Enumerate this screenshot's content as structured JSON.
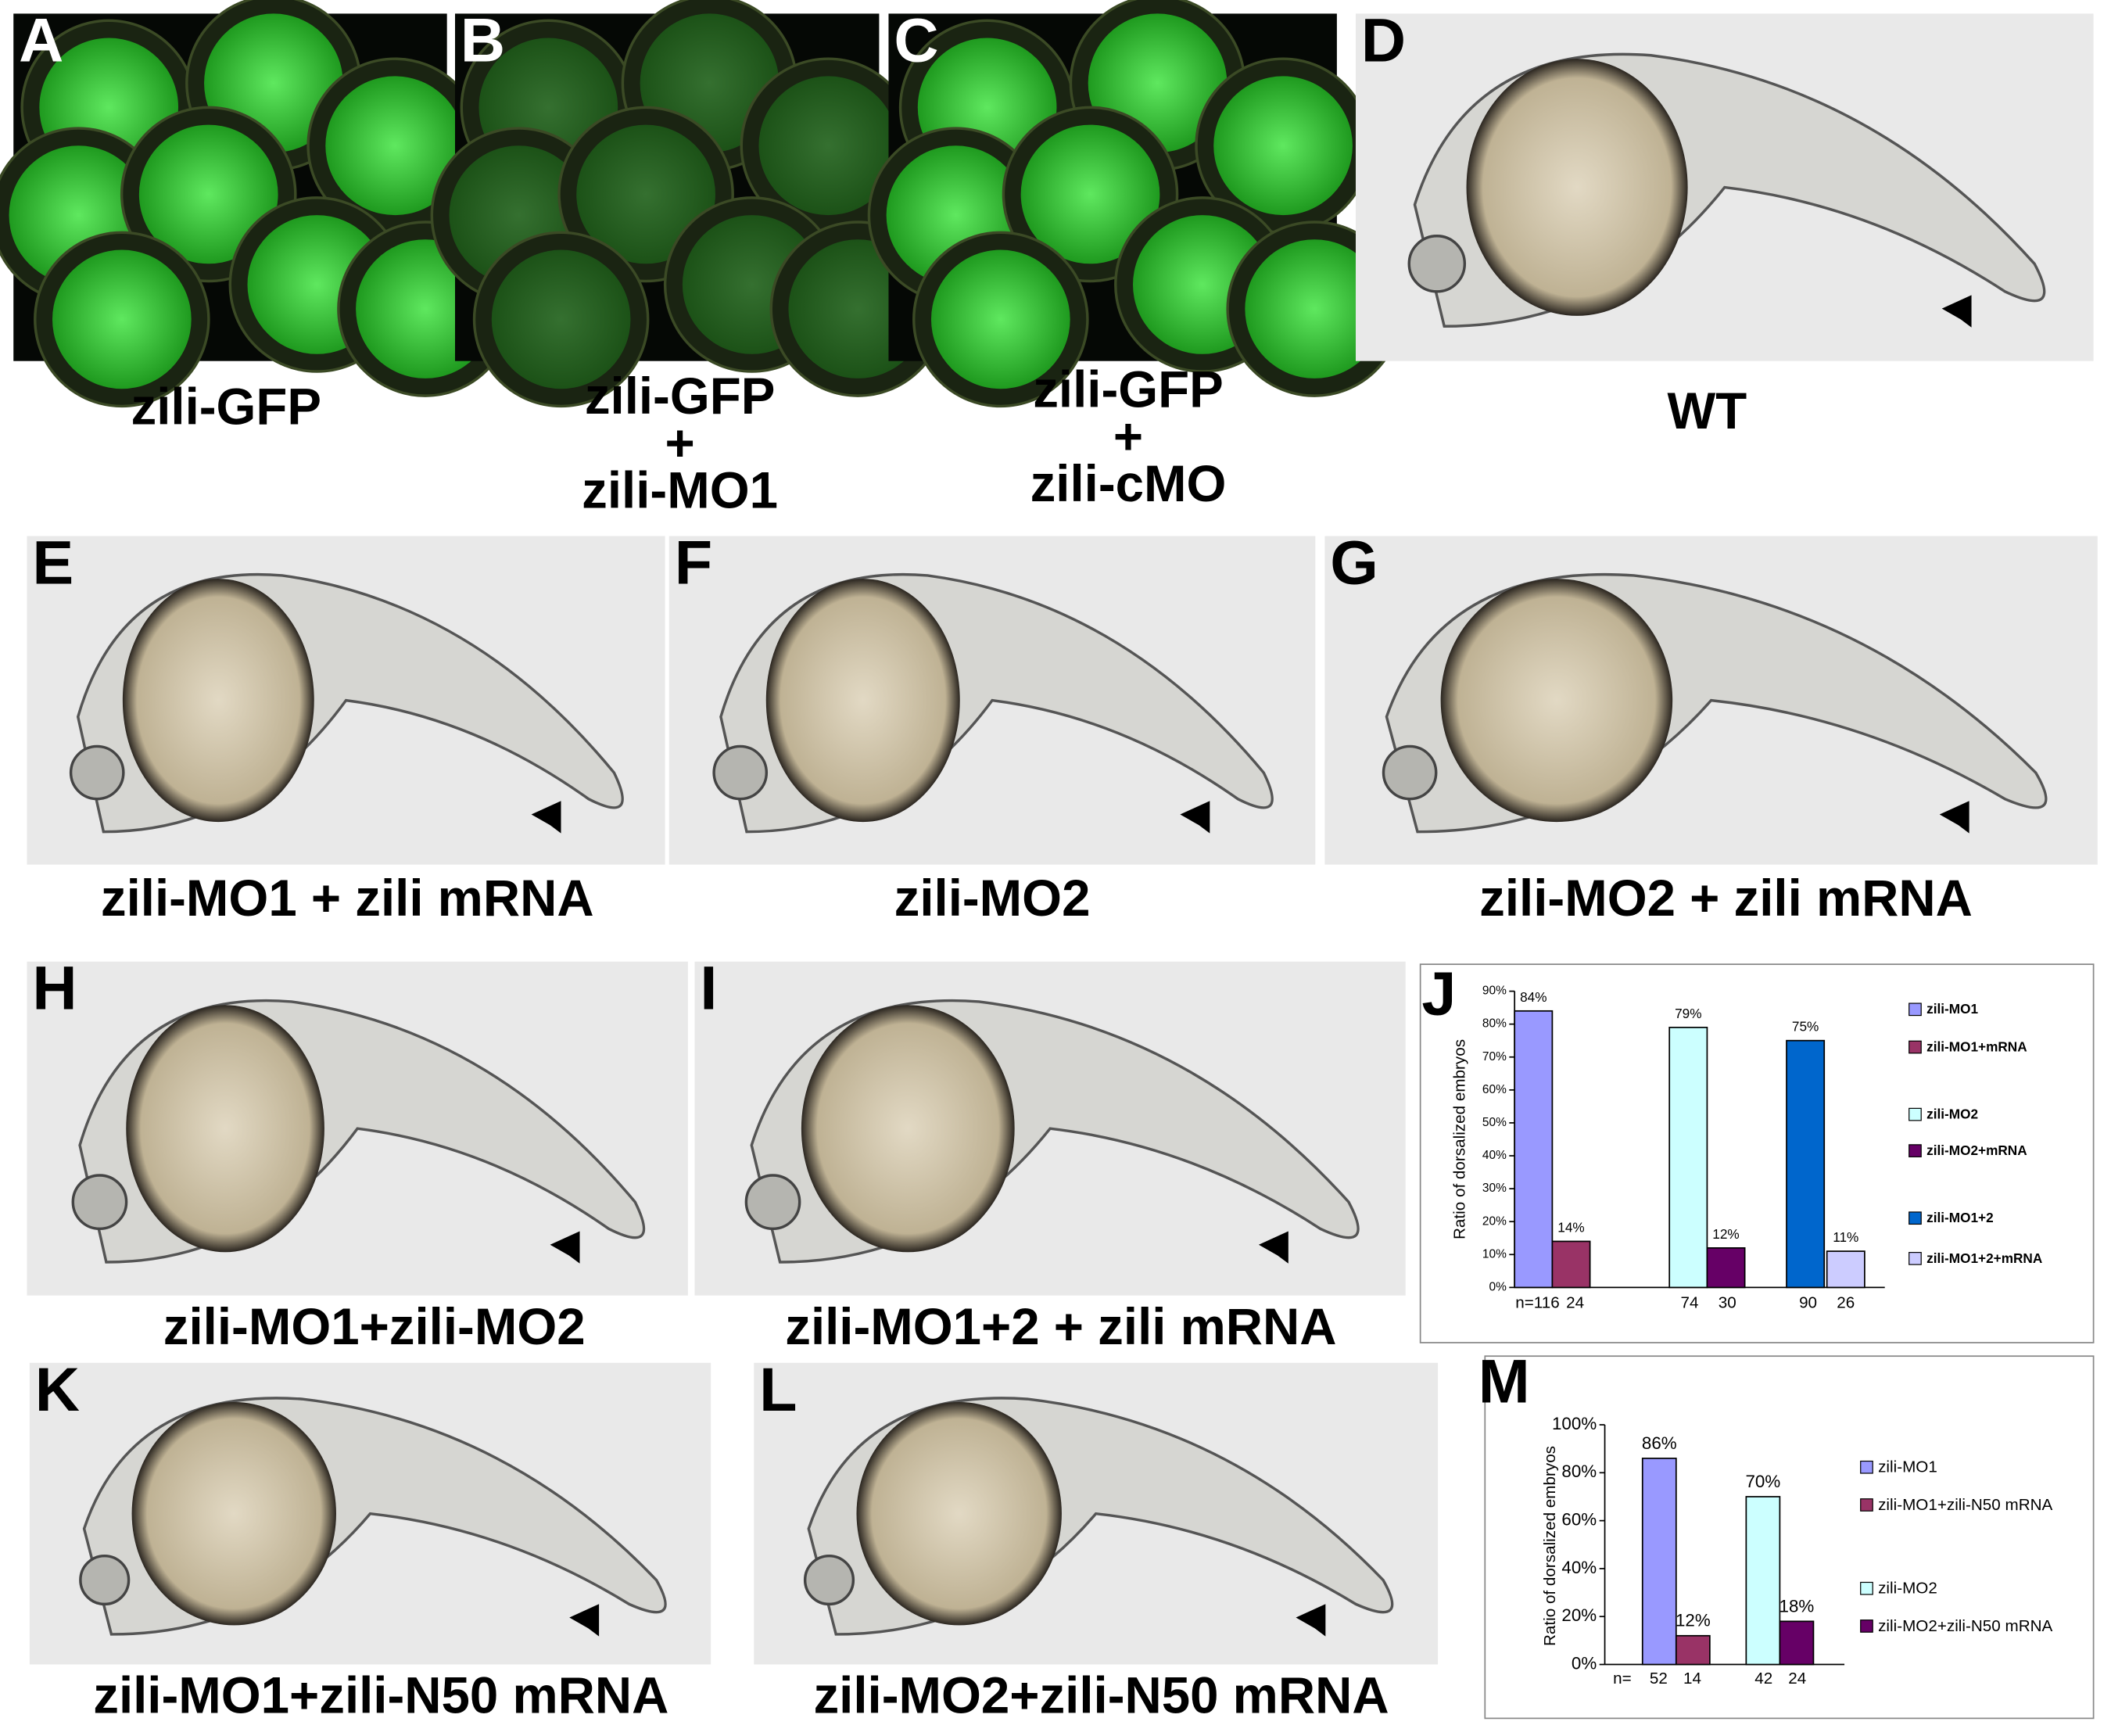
{
  "panels": [
    {
      "letter": "A",
      "caption_lines": [
        "zili-GFP"
      ]
    },
    {
      "letter": "B",
      "caption_lines": [
        "zili-GFP",
        "+",
        "zili-MO1"
      ]
    },
    {
      "letter": "C",
      "caption_lines": [
        "zili-GFP",
        "+",
        "zili-cMO"
      ]
    },
    {
      "letter": "D",
      "caption_lines": [
        "WT"
      ]
    },
    {
      "letter": "E",
      "caption_lines": [
        "zili-MO1 + zili mRNA"
      ]
    },
    {
      "letter": "F",
      "caption_lines": [
        "zili-MO2"
      ]
    },
    {
      "letter": "G",
      "caption_lines": [
        "zili-MO2 + zili mRNA"
      ]
    },
    {
      "letter": "H",
      "caption_lines": [
        "zili-MO1+zili-MO2"
      ]
    },
    {
      "letter": "I",
      "caption_lines": [
        "zili-MO1+2 + zili mRNA"
      ]
    },
    {
      "letter": "K",
      "caption_lines": [
        "zili-MO1+zili-N50 mRNA"
      ]
    },
    {
      "letter": "L",
      "caption_lines": [
        "zili-MO2+zili-N50 mRNA"
      ]
    }
  ],
  "chart_data": [
    {
      "type": "bar",
      "letter": "J",
      "y_label": "Ratio of dorsalized embryos",
      "ylim": [
        0,
        90
      ],
      "yticks": [
        {
          "value": 0,
          "label": "0%"
        },
        {
          "value": 10,
          "label": "10%"
        },
        {
          "value": 20,
          "label": "20%"
        },
        {
          "value": 30,
          "label": "30%"
        },
        {
          "value": 40,
          "label": "40%"
        },
        {
          "value": 50,
          "label": "50%"
        },
        {
          "value": 60,
          "label": "60%"
        },
        {
          "value": 70,
          "label": "70%"
        },
        {
          "value": 80,
          "label": "80%"
        },
        {
          "value": 90,
          "label": "90%"
        }
      ],
      "series": [
        {
          "name": "zili-MO1",
          "color": "#9999ff",
          "values": [
            84
          ],
          "value_labels": [
            "84%"
          ]
        },
        {
          "name": "zili-MO1+mRNA",
          "color": "#993366",
          "values": [
            14
          ],
          "value_labels": [
            "14%"
          ]
        },
        {
          "name": "zili-MO2",
          "color": "#ccffff",
          "values": [
            79
          ],
          "value_labels": [
            "79%"
          ]
        },
        {
          "name": "zili-MO2+mRNA",
          "color": "#660066",
          "values": [
            12
          ],
          "value_labels": [
            "12%"
          ]
        },
        {
          "name": "zili-MO1+2",
          "color": "#0066cc",
          "values": [
            75
          ],
          "value_labels": [
            "75%"
          ]
        },
        {
          "name": "zili-MO1+2+mRNA",
          "color": "#ccccff",
          "values": [
            11
          ],
          "value_labels": [
            "11%"
          ]
        }
      ],
      "n_labels": [
        "n=116",
        "24",
        "74",
        "30",
        "90",
        "26"
      ]
    },
    {
      "type": "bar",
      "letter": "M",
      "y_label": "Ratio of dorsalized embryos",
      "ylim": [
        0,
        100
      ],
      "yticks": [
        {
          "value": 0,
          "label": "0%"
        },
        {
          "value": 20,
          "label": "20%"
        },
        {
          "value": 40,
          "label": "40%"
        },
        {
          "value": 60,
          "label": "60%"
        },
        {
          "value": 80,
          "label": "80%"
        },
        {
          "value": 100,
          "label": "100%"
        }
      ],
      "series": [
        {
          "name": "zili-MO1",
          "color": "#9999ff",
          "values": [
            86
          ],
          "value_labels": [
            "86%"
          ]
        },
        {
          "name": "zili-MO1+zili-N50 mRNA",
          "color": "#993366",
          "values": [
            12
          ],
          "value_labels": [
            "12%"
          ]
        },
        {
          "name": "zili-MO2",
          "color": "#ccffff",
          "values": [
            70
          ],
          "value_labels": [
            "70%"
          ]
        },
        {
          "name": "zili-MO2+zili-N50 mRNA",
          "color": "#660066",
          "values": [
            18
          ],
          "value_labels": [
            "18%"
          ]
        }
      ],
      "n_prefix": "n=",
      "n_labels": [
        "52",
        "14",
        "42",
        "24"
      ]
    }
  ]
}
